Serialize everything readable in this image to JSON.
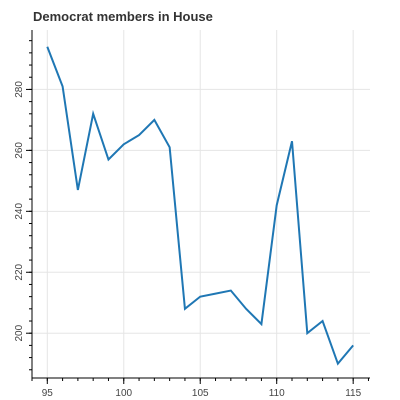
{
  "chart_data": {
    "type": "line",
    "title": "Democrat members in House",
    "xlabel": "",
    "ylabel": "",
    "x": [
      95,
      96,
      97,
      98,
      99,
      100,
      101,
      102,
      103,
      104,
      105,
      106,
      107,
      108,
      109,
      110,
      111,
      112,
      113,
      114,
      115
    ],
    "series": [
      {
        "values": [
          294,
          281,
          247,
          272,
          257,
          262,
          265,
          270,
          261,
          208,
          212,
          213,
          214,
          208,
          203,
          242,
          263,
          200,
          204,
          190,
          196
        ]
      }
    ],
    "xlim": [
      94,
      116.1
    ],
    "ylim": [
      185.3,
      299.5
    ],
    "x_ticks": [
      95,
      100,
      105,
      110,
      115
    ],
    "y_ticks": [
      200,
      220,
      240,
      260,
      280
    ],
    "grid": true,
    "line_color": "#1f77b4"
  }
}
